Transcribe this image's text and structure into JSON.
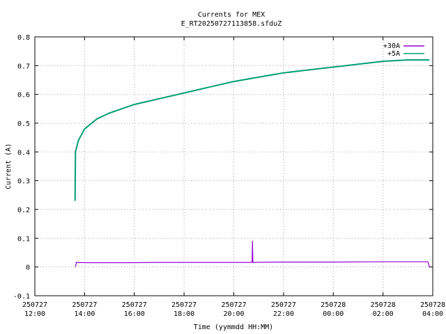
{
  "chart_data": {
    "type": "line",
    "title": "Currents for MEX",
    "subtitle": "E_RT20250727113858.sfduZ",
    "xlabel": "Time (yymmdd HH:MM)",
    "ylabel": "Current (A)",
    "xlim": [
      "250727 12:00",
      "250728 04:00"
    ],
    "ylim": [
      -0.1,
      0.8
    ],
    "grid": true,
    "legend_position": "top-right",
    "x_ticks": [
      {
        "date": "250727",
        "time": "12:00"
      },
      {
        "date": "250727",
        "time": "14:00"
      },
      {
        "date": "250727",
        "time": "16:00"
      },
      {
        "date": "250727",
        "time": "18:00"
      },
      {
        "date": "250727",
        "time": "20:00"
      },
      {
        "date": "250727",
        "time": "22:00"
      },
      {
        "date": "250728",
        "time": "00:00"
      },
      {
        "date": "250728",
        "time": "02:00"
      },
      {
        "date": "250728",
        "time": "04:00"
      }
    ],
    "y_ticks": [
      "-0.1",
      "0",
      "0.1",
      "0.2",
      "0.3",
      "0.4",
      "0.5",
      "0.6",
      "0.7",
      "0.8"
    ],
    "series": [
      {
        "name": "+30A",
        "color": "#9400d3",
        "points": [
          [
            "250727 13:38",
            0.0
          ],
          [
            "250727 13:40",
            0.016
          ],
          [
            "250727 14:00",
            0.015
          ],
          [
            "250727 15:00",
            0.015
          ],
          [
            "250727 16:00",
            0.015
          ],
          [
            "250727 17:00",
            0.016
          ],
          [
            "250727 18:00",
            0.016
          ],
          [
            "250727 19:00",
            0.016
          ],
          [
            "250727 20:00",
            0.016
          ],
          [
            "250727 20:44",
            0.016
          ],
          [
            "250727 20:45",
            0.09
          ],
          [
            "250727 20:46",
            0.016
          ],
          [
            "250727 22:00",
            0.017
          ],
          [
            "250728 00:00",
            0.017
          ],
          [
            "250728 02:00",
            0.018
          ],
          [
            "250728 03:48",
            0.018
          ],
          [
            "250728 03:52",
            0.0
          ]
        ]
      },
      {
        "name": "+5A",
        "color": "#009e73",
        "points": [
          [
            "250727 13:37",
            0.23
          ],
          [
            "250727 13:38",
            0.4
          ],
          [
            "250727 13:45",
            0.44
          ],
          [
            "250727 14:00",
            0.48
          ],
          [
            "250727 14:30",
            0.515
          ],
          [
            "250727 15:00",
            0.535
          ],
          [
            "250727 15:30",
            0.55
          ],
          [
            "250727 16:00",
            0.565
          ],
          [
            "250727 17:00",
            0.585
          ],
          [
            "250727 18:00",
            0.605
          ],
          [
            "250727 19:00",
            0.625
          ],
          [
            "250727 20:00",
            0.645
          ],
          [
            "250727 21:00",
            0.66
          ],
          [
            "250727 22:00",
            0.675
          ],
          [
            "250727 23:00",
            0.685
          ],
          [
            "250728 00:00",
            0.695
          ],
          [
            "250728 01:00",
            0.705
          ],
          [
            "250728 02:00",
            0.715
          ],
          [
            "250728 03:00",
            0.72
          ],
          [
            "250728 03:52",
            0.72
          ]
        ]
      }
    ]
  }
}
